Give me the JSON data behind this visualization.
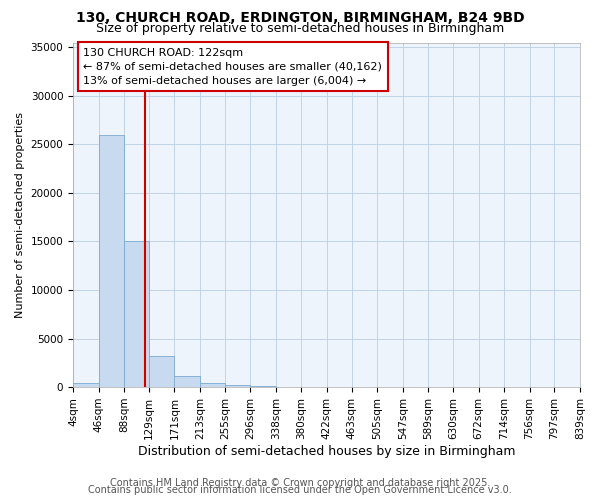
{
  "title1": "130, CHURCH ROAD, ERDINGTON, BIRMINGHAM, B24 9BD",
  "title2": "Size of property relative to semi-detached houses in Birmingham",
  "xlabel": "Distribution of semi-detached houses by size in Birmingham",
  "ylabel": "Number of semi-detached properties",
  "bin_labels": [
    "4sqm",
    "46sqm",
    "88sqm",
    "129sqm",
    "171sqm",
    "213sqm",
    "255sqm",
    "296sqm",
    "338sqm",
    "380sqm",
    "422sqm",
    "463sqm",
    "505sqm",
    "547sqm",
    "589sqm",
    "630sqm",
    "672sqm",
    "714sqm",
    "756sqm",
    "797sqm",
    "839sqm"
  ],
  "bin_edges": [
    4,
    46,
    88,
    129,
    171,
    213,
    255,
    296,
    338,
    380,
    422,
    463,
    505,
    547,
    589,
    630,
    672,
    714,
    756,
    797,
    839
  ],
  "bar_heights": [
    400,
    26000,
    15100,
    3200,
    1100,
    400,
    200,
    100,
    0,
    0,
    0,
    0,
    0,
    0,
    0,
    0,
    0,
    0,
    0,
    0
  ],
  "bar_color": "#c8daf0",
  "bar_edge_color": "#7aaad0",
  "property_size": 122,
  "red_line_color": "#cc0000",
  "annotation_line1": "130 CHURCH ROAD: 122sqm",
  "annotation_line2": "← 87% of semi-detached houses are smaller (40,162)",
  "annotation_line3": "13% of semi-detached houses are larger (6,004) →",
  "annotation_box_color": "#ffffff",
  "annotation_border_color": "#cc0000",
  "ylim": [
    0,
    35500
  ],
  "yticks": [
    0,
    5000,
    10000,
    15000,
    20000,
    25000,
    30000,
    35000
  ],
  "footer1": "Contains HM Land Registry data © Crown copyright and database right 2025.",
  "footer2": "Contains public sector information licensed under the Open Government Licence v3.0.",
  "background_color": "#ffffff",
  "plot_bg_color": "#eef4fc",
  "grid_color": "#c0d4e8",
  "title1_fontsize": 10,
  "title2_fontsize": 9,
  "xlabel_fontsize": 9,
  "ylabel_fontsize": 8,
  "tick_fontsize": 7.5,
  "annotation_fontsize": 8,
  "footer_fontsize": 7
}
